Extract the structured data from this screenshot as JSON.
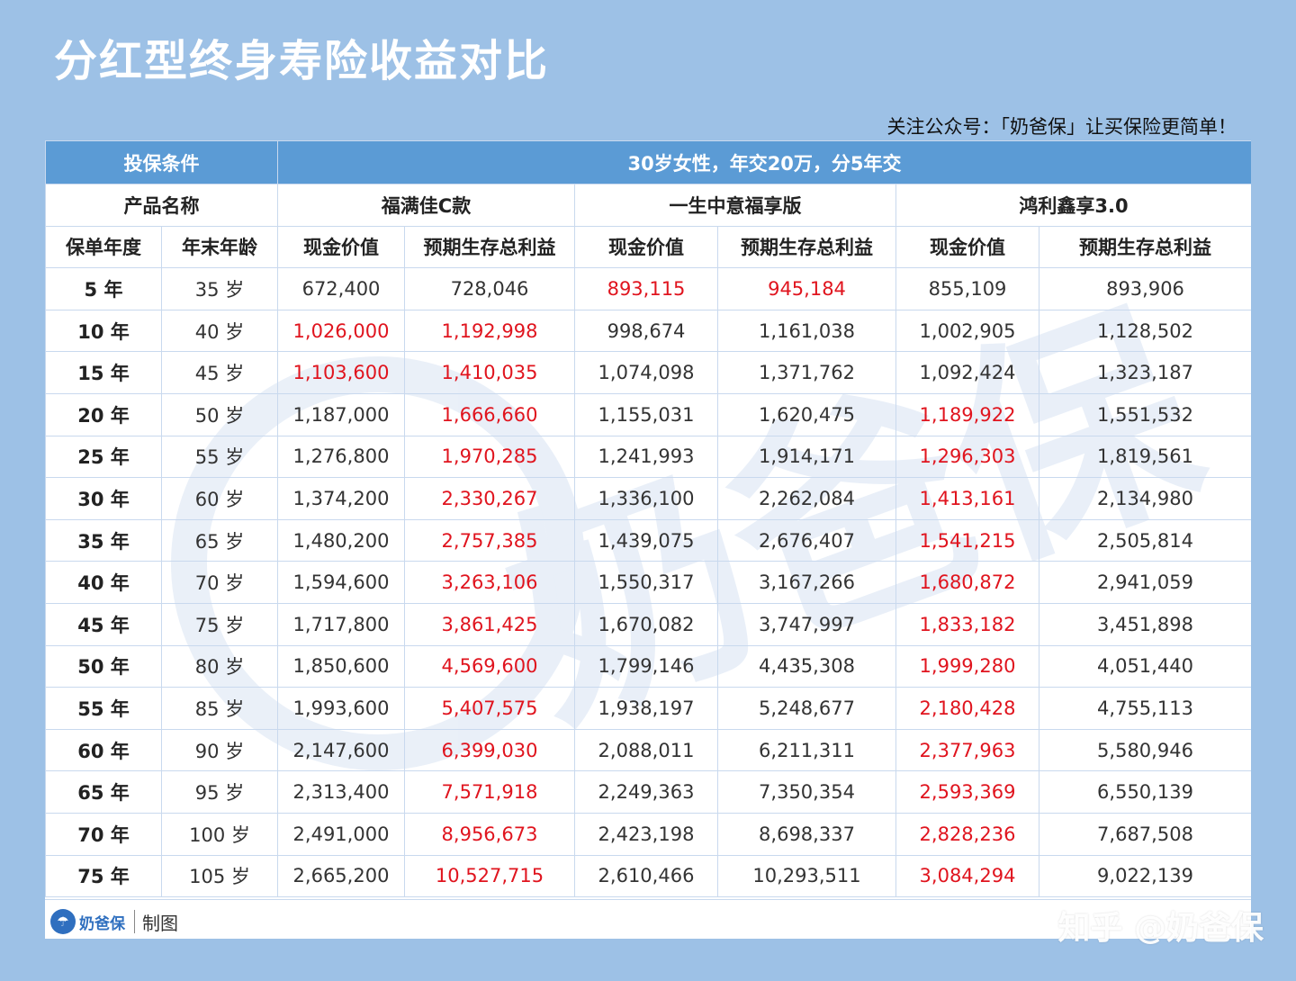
{
  "title": "分红型终身寿险收益对比",
  "subtitle": "关注公众号：「奶爸保」让买保险更简单！",
  "condition_label": "投保条件",
  "condition_value": "30岁女性，年交20万，分5年交",
  "product_label": "产品名称",
  "products": [
    "福满佳C款",
    "一生中意福享版",
    "鸿利鑫享3.0"
  ],
  "columns": {
    "policy_year": "保单年度",
    "age": "年末年龄",
    "cash_value": "现金价值",
    "total_benefit": "预期生存总利益"
  },
  "rows": [
    {
      "year": "5 年",
      "age": "35 岁",
      "vals": [
        "672,400",
        "728,046",
        "893,115",
        "945,184",
        "855,109",
        "893,906"
      ],
      "red": [
        false,
        false,
        true,
        true,
        false,
        false
      ]
    },
    {
      "year": "10 年",
      "age": "40 岁",
      "vals": [
        "1,026,000",
        "1,192,998",
        "998,674",
        "1,161,038",
        "1,002,905",
        "1,128,502"
      ],
      "red": [
        true,
        true,
        false,
        false,
        false,
        false
      ]
    },
    {
      "year": "15 年",
      "age": "45 岁",
      "vals": [
        "1,103,600",
        "1,410,035",
        "1,074,098",
        "1,371,762",
        "1,092,424",
        "1,323,187"
      ],
      "red": [
        true,
        true,
        false,
        false,
        false,
        false
      ]
    },
    {
      "year": "20 年",
      "age": "50 岁",
      "vals": [
        "1,187,000",
        "1,666,660",
        "1,155,031",
        "1,620,475",
        "1,189,922",
        "1,551,532"
      ],
      "red": [
        false,
        true,
        false,
        false,
        true,
        false
      ]
    },
    {
      "year": "25 年",
      "age": "55 岁",
      "vals": [
        "1,276,800",
        "1,970,285",
        "1,241,993",
        "1,914,171",
        "1,296,303",
        "1,819,561"
      ],
      "red": [
        false,
        true,
        false,
        false,
        true,
        false
      ]
    },
    {
      "year": "30 年",
      "age": "60 岁",
      "vals": [
        "1,374,200",
        "2,330,267",
        "1,336,100",
        "2,262,084",
        "1,413,161",
        "2,134,980"
      ],
      "red": [
        false,
        true,
        false,
        false,
        true,
        false
      ]
    },
    {
      "year": "35 年",
      "age": "65 岁",
      "vals": [
        "1,480,200",
        "2,757,385",
        "1,439,075",
        "2,676,407",
        "1,541,215",
        "2,505,814"
      ],
      "red": [
        false,
        true,
        false,
        false,
        true,
        false
      ]
    },
    {
      "year": "40 年",
      "age": "70 岁",
      "vals": [
        "1,594,600",
        "3,263,106",
        "1,550,317",
        "3,167,266",
        "1,680,872",
        "2,941,059"
      ],
      "red": [
        false,
        true,
        false,
        false,
        true,
        false
      ]
    },
    {
      "year": "45 年",
      "age": "75 岁",
      "vals": [
        "1,717,800",
        "3,861,425",
        "1,670,082",
        "3,747,997",
        "1,833,182",
        "3,451,898"
      ],
      "red": [
        false,
        true,
        false,
        false,
        true,
        false
      ]
    },
    {
      "year": "50 年",
      "age": "80 岁",
      "vals": [
        "1,850,600",
        "4,569,600",
        "1,799,146",
        "4,435,308",
        "1,999,280",
        "4,051,440"
      ],
      "red": [
        false,
        true,
        false,
        false,
        true,
        false
      ]
    },
    {
      "year": "55 年",
      "age": "85 岁",
      "vals": [
        "1,993,600",
        "5,407,575",
        "1,938,197",
        "5,248,677",
        "2,180,428",
        "4,755,113"
      ],
      "red": [
        false,
        true,
        false,
        false,
        true,
        false
      ]
    },
    {
      "year": "60 年",
      "age": "90 岁",
      "vals": [
        "2,147,600",
        "6,399,030",
        "2,088,011",
        "6,211,311",
        "2,377,963",
        "5,580,946"
      ],
      "red": [
        false,
        true,
        false,
        false,
        true,
        false
      ]
    },
    {
      "year": "65 年",
      "age": "95 岁",
      "vals": [
        "2,313,400",
        "7,571,918",
        "2,249,363",
        "7,350,354",
        "2,593,369",
        "6,550,139"
      ],
      "red": [
        false,
        true,
        false,
        false,
        true,
        false
      ]
    },
    {
      "year": "70 年",
      "age": "100 岁",
      "vals": [
        "2,491,000",
        "8,956,673",
        "2,423,198",
        "8,698,337",
        "2,828,236",
        "7,687,508"
      ],
      "red": [
        false,
        true,
        false,
        false,
        true,
        false
      ]
    },
    {
      "year": "75 年",
      "age": "105 岁",
      "vals": [
        "2,665,200",
        "10,527,715",
        "2,610,466",
        "10,293,511",
        "3,084,294",
        "9,022,139"
      ],
      "red": [
        false,
        true,
        false,
        false,
        true,
        false
      ]
    }
  ],
  "footer": {
    "logo_text": "奶爸保",
    "made_by": "制图"
  },
  "corner_watermark": "知乎 @奶爸保",
  "watermark_text": "奶爸保",
  "colors": {
    "background": "#9dc1e6",
    "header_blue": "#5b9bd5",
    "highlight_red": "#e0141e"
  }
}
